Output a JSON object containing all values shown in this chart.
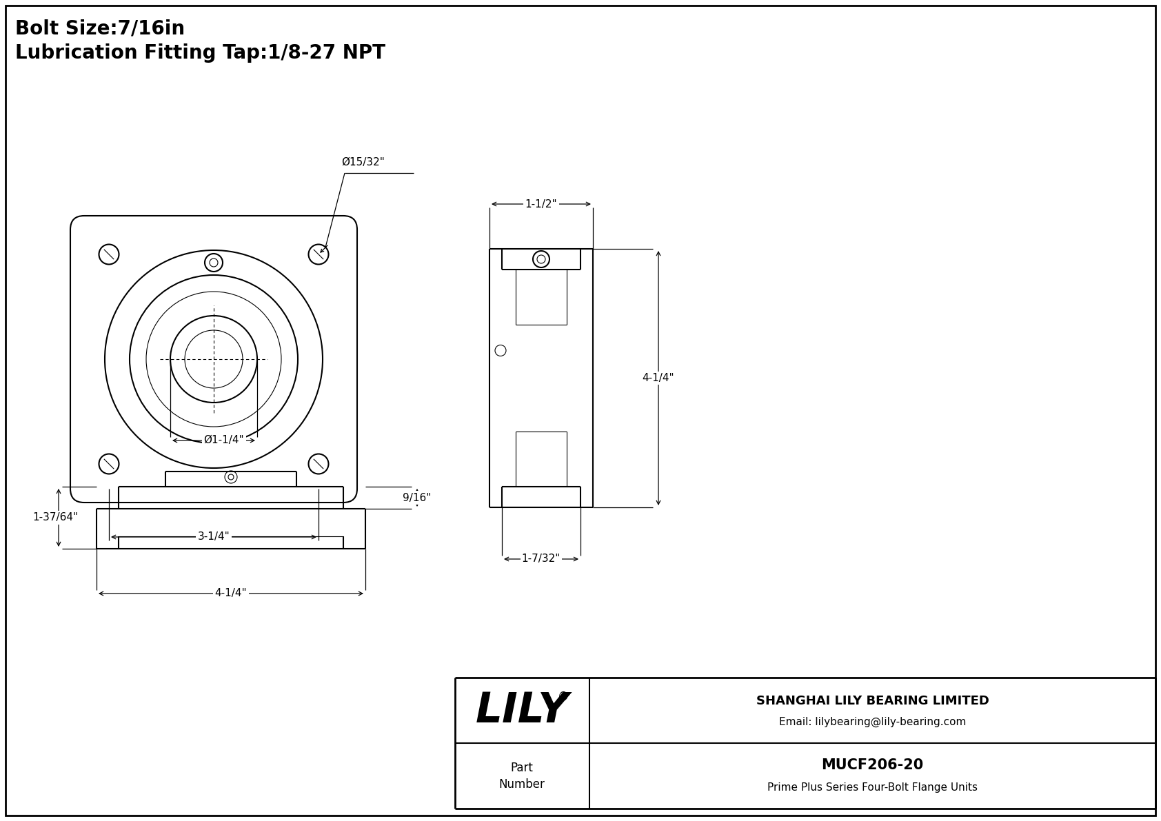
{
  "title_line1": "Bolt Size:7/16in",
  "title_line2": "Lubrication Fitting Tap:1/8-27 NPT",
  "company": "SHANGHAI LILY BEARING LIMITED",
  "email": "Email: lilybearing@lily-bearing.com",
  "part_number_label": "Part\nNumber",
  "part_number": "MUCF206-20",
  "series": "Prime Plus Series Four-Bolt Flange Units",
  "lily_text": "LILY",
  "registered": "®",
  "bg_color": "#ffffff",
  "line_color": "#000000",
  "dim_label_bolt_hole": "Ø15/32\"",
  "dim_label_bore": "Ø1-1/4\"",
  "dim_label_width_front": "3-1/4\"",
  "dim_label_height_side": "4-1/4\"",
  "dim_label_width_side_top": "1-1/2\"",
  "dim_label_width_side_bot": "1-7/32\"",
  "dim_label_height_bottom": "9/16\"",
  "dim_label_width_bottom": "4-1/4\"",
  "dim_label_left_bottom": "1-37/64\""
}
